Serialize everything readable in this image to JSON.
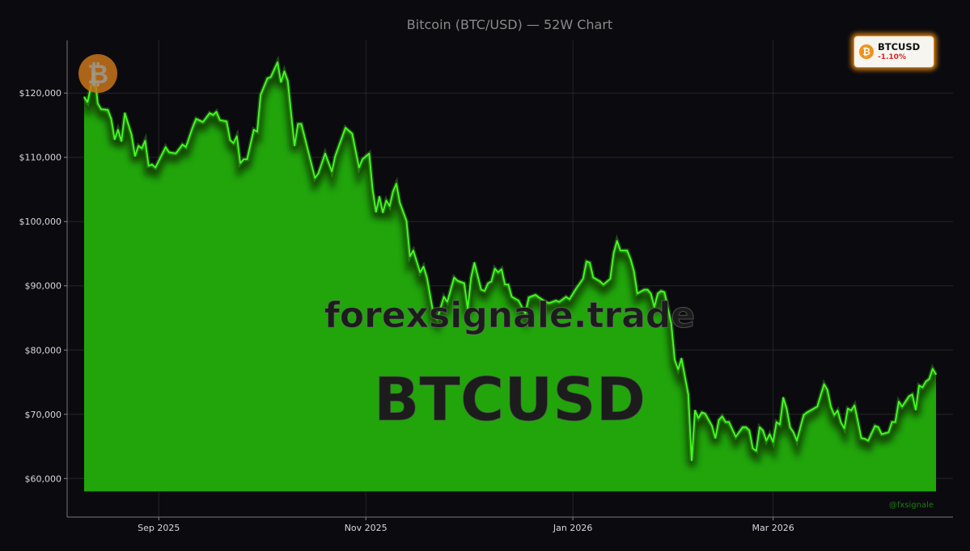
{
  "chart_data": {
    "type": "area",
    "title": "Bitcoin (BTC/USD) — 52W Chart",
    "xlabel": "",
    "ylabel": "",
    "xlim": [
      "2025-08-05",
      "2026-04-23"
    ],
    "ylim": [
      54000,
      128200
    ],
    "fill_baseline": 58000,
    "grid": true,
    "y_ticks": [
      60000,
      70000,
      80000,
      90000,
      100000,
      110000,
      120000
    ],
    "y_tick_labels": [
      "$60,000",
      "$70,000",
      "$80,000",
      "$90,000",
      "$100,000",
      "$110,000",
      "$120,000"
    ],
    "x_ticks": [
      "2025-09-01",
      "2025-11-01",
      "2026-01-01",
      "2026-03-01"
    ],
    "x_tick_labels": [
      "Sep 2025",
      "Nov 2025",
      "Jan 2026",
      "Mar 2026"
    ],
    "colors": {
      "line": "#44ff22",
      "fill": "#21a50b",
      "background": "#0b0b0f"
    },
    "points": [
      [
        "2025-08-10",
        119400
      ],
      [
        "2025-08-11",
        118600
      ],
      [
        "2025-08-13",
        123500
      ],
      [
        "2025-08-14",
        118400
      ],
      [
        "2025-08-15",
        117500
      ],
      [
        "2025-08-17",
        117400
      ],
      [
        "2025-08-18",
        116000
      ],
      [
        "2025-08-19",
        112800
      ],
      [
        "2025-08-20",
        114300
      ],
      [
        "2025-08-21",
        112500
      ],
      [
        "2025-08-22",
        116900
      ],
      [
        "2025-08-24",
        113500
      ],
      [
        "2025-08-25",
        110200
      ],
      [
        "2025-08-26",
        111800
      ],
      [
        "2025-08-27",
        111400
      ],
      [
        "2025-08-28",
        112600
      ],
      [
        "2025-08-29",
        108700
      ],
      [
        "2025-08-30",
        108900
      ],
      [
        "2025-08-31",
        108400
      ],
      [
        "2025-09-03",
        111600
      ],
      [
        "2025-09-04",
        110800
      ],
      [
        "2025-09-06",
        110600
      ],
      [
        "2025-09-08",
        112000
      ],
      [
        "2025-09-09",
        111600
      ],
      [
        "2025-09-11",
        114700
      ],
      [
        "2025-09-12",
        116000
      ],
      [
        "2025-09-14",
        115500
      ],
      [
        "2025-09-16",
        116900
      ],
      [
        "2025-09-17",
        116600
      ],
      [
        "2025-09-18",
        117100
      ],
      [
        "2025-09-19",
        115800
      ],
      [
        "2025-09-21",
        115600
      ],
      [
        "2025-09-22",
        112700
      ],
      [
        "2025-09-23",
        112200
      ],
      [
        "2025-09-24",
        113300
      ],
      [
        "2025-09-25",
        109100
      ],
      [
        "2025-09-26",
        109700
      ],
      [
        "2025-09-27",
        109700
      ],
      [
        "2025-09-29",
        114300
      ],
      [
        "2025-09-30",
        114000
      ],
      [
        "2025-10-01",
        119700
      ],
      [
        "2025-10-03",
        122300
      ],
      [
        "2025-10-04",
        122500
      ],
      [
        "2025-10-06",
        124800
      ],
      [
        "2025-10-07",
        121700
      ],
      [
        "2025-10-08",
        123400
      ],
      [
        "2025-10-09",
        121900
      ],
      [
        "2025-10-11",
        111800
      ],
      [
        "2025-10-12",
        115200
      ],
      [
        "2025-10-13",
        115200
      ],
      [
        "2025-10-15",
        111000
      ],
      [
        "2025-10-17",
        106800
      ],
      [
        "2025-10-18",
        107500
      ],
      [
        "2025-10-20",
        110600
      ],
      [
        "2025-10-22",
        107800
      ],
      [
        "2025-10-23",
        110200
      ],
      [
        "2025-10-26",
        114600
      ],
      [
        "2025-10-28",
        113700
      ],
      [
        "2025-10-30",
        108400
      ],
      [
        "2025-10-31",
        109700
      ],
      [
        "2025-11-02",
        110600
      ],
      [
        "2025-11-03",
        105000
      ],
      [
        "2025-11-04",
        101500
      ],
      [
        "2025-11-05",
        103900
      ],
      [
        "2025-11-06",
        101400
      ],
      [
        "2025-11-07",
        103300
      ],
      [
        "2025-11-08",
        102400
      ],
      [
        "2025-11-09",
        104700
      ],
      [
        "2025-11-10",
        105900
      ],
      [
        "2025-11-11",
        103000
      ],
      [
        "2025-11-13",
        100100
      ],
      [
        "2025-11-14",
        94600
      ],
      [
        "2025-11-15",
        95500
      ],
      [
        "2025-11-17",
        92100
      ],
      [
        "2025-11-18",
        93000
      ],
      [
        "2025-11-19",
        91300
      ],
      [
        "2025-11-21",
        85400
      ],
      [
        "2025-11-22",
        84800
      ],
      [
        "2025-11-24",
        88300
      ],
      [
        "2025-11-25",
        87500
      ],
      [
        "2025-11-27",
        91300
      ],
      [
        "2025-11-28",
        90800
      ],
      [
        "2025-11-30",
        90400
      ],
      [
        "2025-12-01",
        86400
      ],
      [
        "2025-12-02",
        91300
      ],
      [
        "2025-12-03",
        93600
      ],
      [
        "2025-12-05",
        89400
      ],
      [
        "2025-12-06",
        89200
      ],
      [
        "2025-12-07",
        90400
      ],
      [
        "2025-12-08",
        90700
      ],
      [
        "2025-12-09",
        92700
      ],
      [
        "2025-12-10",
        92100
      ],
      [
        "2025-12-11",
        92600
      ],
      [
        "2025-12-12",
        90200
      ],
      [
        "2025-12-13",
        90200
      ],
      [
        "2025-12-14",
        88300
      ],
      [
        "2025-12-16",
        87700
      ],
      [
        "2025-12-17",
        86700
      ],
      [
        "2025-12-18",
        85700
      ],
      [
        "2025-12-19",
        88200
      ],
      [
        "2025-12-21",
        88600
      ],
      [
        "2025-12-22",
        88200
      ],
      [
        "2025-12-24",
        87500
      ],
      [
        "2025-12-25",
        87300
      ],
      [
        "2025-12-27",
        87700
      ],
      [
        "2025-12-28",
        87500
      ],
      [
        "2025-12-30",
        88300
      ],
      [
        "2025-12-31",
        87900
      ],
      [
        "2026-01-02",
        89600
      ],
      [
        "2026-01-04",
        91100
      ],
      [
        "2026-01-05",
        93800
      ],
      [
        "2026-01-06",
        93600
      ],
      [
        "2026-01-07",
        91300
      ],
      [
        "2026-01-09",
        90700
      ],
      [
        "2026-01-10",
        90200
      ],
      [
        "2026-01-12",
        91100
      ],
      [
        "2026-01-13",
        95100
      ],
      [
        "2026-01-14",
        97000
      ],
      [
        "2026-01-15",
        95500
      ],
      [
        "2026-01-17",
        95500
      ],
      [
        "2026-01-18",
        94200
      ],
      [
        "2026-01-19",
        92300
      ],
      [
        "2026-01-20",
        88800
      ],
      [
        "2026-01-22",
        89400
      ],
      [
        "2026-01-23",
        89400
      ],
      [
        "2026-01-24",
        88800
      ],
      [
        "2026-01-25",
        86700
      ],
      [
        "2026-01-26",
        88800
      ],
      [
        "2026-01-27",
        89200
      ],
      [
        "2026-01-28",
        89000
      ],
      [
        "2026-01-30",
        84100
      ],
      [
        "2026-01-31",
        78500
      ],
      [
        "2026-02-01",
        77000
      ],
      [
        "2026-02-02",
        78700
      ],
      [
        "2026-02-04",
        73100
      ],
      [
        "2026-02-05",
        62800
      ],
      [
        "2026-02-06",
        70600
      ],
      [
        "2026-02-07",
        69400
      ],
      [
        "2026-02-08",
        70300
      ],
      [
        "2026-02-09",
        70100
      ],
      [
        "2026-02-11",
        68200
      ],
      [
        "2026-02-12",
        66300
      ],
      [
        "2026-02-13",
        69100
      ],
      [
        "2026-02-14",
        69700
      ],
      [
        "2026-02-15",
        68800
      ],
      [
        "2026-02-16",
        68800
      ],
      [
        "2026-02-18",
        66500
      ],
      [
        "2026-02-20",
        68000
      ],
      [
        "2026-02-21",
        68000
      ],
      [
        "2026-02-22",
        67500
      ],
      [
        "2026-02-23",
        64700
      ],
      [
        "2026-02-24",
        64300
      ],
      [
        "2026-02-25",
        68000
      ],
      [
        "2026-02-26",
        67500
      ],
      [
        "2026-02-27",
        65900
      ],
      [
        "2026-02-28",
        66900
      ],
      [
        "2026-03-01",
        65700
      ],
      [
        "2026-03-02",
        68800
      ],
      [
        "2026-03-03",
        68400
      ],
      [
        "2026-03-04",
        72600
      ],
      [
        "2026-03-05",
        70900
      ],
      [
        "2026-03-06",
        68000
      ],
      [
        "2026-03-07",
        67200
      ],
      [
        "2026-03-08",
        65900
      ],
      [
        "2026-03-10",
        69900
      ],
      [
        "2026-03-11",
        70300
      ],
      [
        "2026-03-14",
        71200
      ],
      [
        "2026-03-16",
        74700
      ],
      [
        "2026-03-17",
        73800
      ],
      [
        "2026-03-18",
        71200
      ],
      [
        "2026-03-19",
        69900
      ],
      [
        "2026-03-20",
        70600
      ],
      [
        "2026-03-21",
        68700
      ],
      [
        "2026-03-22",
        67800
      ],
      [
        "2026-03-23",
        70900
      ],
      [
        "2026-03-24",
        70600
      ],
      [
        "2026-03-25",
        71400
      ],
      [
        "2026-03-27",
        66300
      ],
      [
        "2026-03-28",
        66200
      ],
      [
        "2026-03-29",
        65900
      ],
      [
        "2026-03-31",
        68200
      ],
      [
        "2026-04-01",
        68000
      ],
      [
        "2026-04-02",
        66900
      ],
      [
        "2026-04-04",
        67200
      ],
      [
        "2026-04-05",
        68800
      ],
      [
        "2026-04-06",
        68800
      ],
      [
        "2026-04-07",
        72000
      ],
      [
        "2026-04-08",
        71200
      ],
      [
        "2026-04-10",
        72800
      ],
      [
        "2026-04-11",
        73100
      ],
      [
        "2026-04-12",
        70700
      ],
      [
        "2026-04-13",
        74500
      ],
      [
        "2026-04-14",
        74200
      ],
      [
        "2026-04-15",
        75100
      ],
      [
        "2026-04-16",
        75500
      ],
      [
        "2026-04-17",
        77100
      ],
      [
        "2026-04-18",
        76200
      ]
    ]
  },
  "watermarks": {
    "site": "forexsignale.trade",
    "symbol": "BTCUSD",
    "handle": "@fxsignale",
    "logo": "bitcoin-logo"
  },
  "badge": {
    "icon": "bitcoin-icon",
    "symbol": "BTCUSD",
    "change": "-1.10%",
    "change_color": "#d32626"
  }
}
